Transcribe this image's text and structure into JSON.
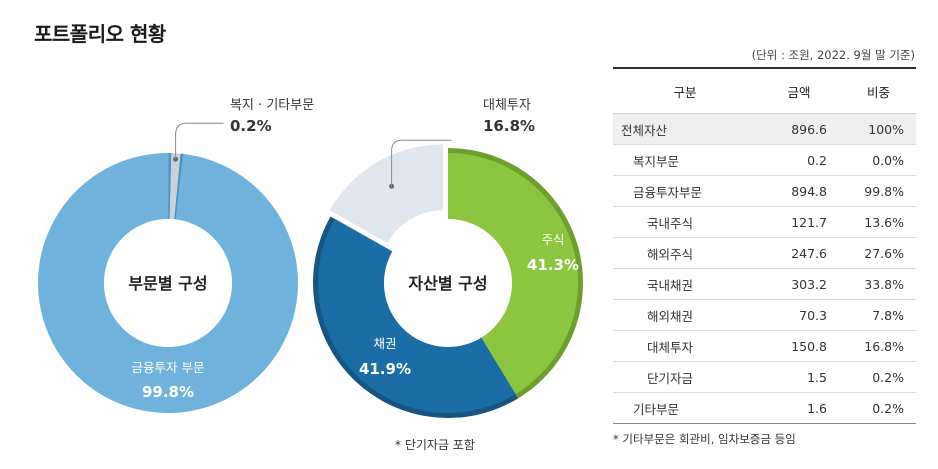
{
  "title": "포트폴리오 현황",
  "unit_note": "(단위 : 조원, 2022. 9월 말 기준)",
  "donut_note": "* 단기자금 포함",
  "table": {
    "headers": [
      "구분",
      "금액",
      "비중"
    ],
    "rows": [
      {
        "name": "전체자산",
        "amount": "896.6",
        "share": "100%",
        "level": 0
      },
      {
        "name": "복지부문",
        "amount": "0.2",
        "share": "0.0%",
        "level": 1
      },
      {
        "name": "금융투자부문",
        "amount": "894.8",
        "share": "99.8%",
        "level": 1
      },
      {
        "name": "국내주식",
        "amount": "121.7",
        "share": "13.6%",
        "level": 2
      },
      {
        "name": "해외주식",
        "amount": "247.6",
        "share": "27.6%",
        "level": 2
      },
      {
        "name": "국내채권",
        "amount": "303.2",
        "share": "33.8%",
        "level": 2
      },
      {
        "name": "해외채권",
        "amount": "70.3",
        "share": "7.8%",
        "level": 2
      },
      {
        "name": "대체투자",
        "amount": "150.8",
        "share": "16.8%",
        "level": 2
      },
      {
        "name": "단기자금",
        "amount": "1.5",
        "share": "0.2%",
        "level": 2
      },
      {
        "name": "기타부문",
        "amount": "1.6",
        "share": "0.2%",
        "level": 1
      }
    ]
  },
  "footnote": "* 기타부문은 회관비, 임차보증금 등임",
  "colors": {
    "finance": "#6fb3dc",
    "welfare": "#c9d2da",
    "bond": "#1b6da5",
    "stock": "#8cc63f",
    "alternative": "#dfe6ee"
  },
  "chart_data": [
    {
      "type": "pie",
      "title": "부문별 구성",
      "slices": [
        {
          "label": "금융투자 부문",
          "value": 99.8,
          "display": "99.8%",
          "color": "#6fb3dc"
        },
        {
          "label": "복지 · 기타부문",
          "value": 0.2,
          "display": "0.2%",
          "color": "#c9d2da"
        }
      ]
    },
    {
      "type": "pie",
      "title": "자산별 구성",
      "slices": [
        {
          "label": "주식",
          "value": 41.3,
          "display": "41.3%",
          "color": "#8cc63f"
        },
        {
          "label": "채권",
          "value": 41.9,
          "display": "41.9%",
          "color": "#1b6da5"
        },
        {
          "label": "대체투자",
          "value": 16.8,
          "display": "16.8%",
          "color": "#dfe6ee"
        }
      ]
    }
  ]
}
